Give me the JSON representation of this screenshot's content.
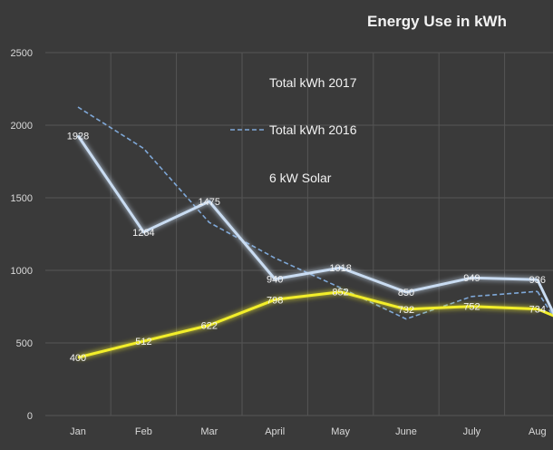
{
  "chart_data": {
    "type": "line",
    "title": "Energy Use in kWh",
    "xlabel": "",
    "ylabel": "",
    "categories": [
      "Jan",
      "Feb",
      "Mar",
      "April",
      "May",
      "June",
      "July",
      "Aug"
    ],
    "ylim": [
      0,
      2500
    ],
    "yticks": [
      0,
      500,
      1000,
      1500,
      2000,
      2500
    ],
    "grid": true,
    "legend_position": "inside-top-center",
    "series": [
      {
        "name": "Total kWh 2017",
        "values": [
          1928,
          1264,
          1475,
          940,
          1018,
          850,
          949,
          936
        ],
        "labels": [
          "1928",
          "1264",
          "1475",
          "940",
          "1018",
          "850",
          "949",
          "936"
        ],
        "color": "#c9dcf2",
        "style": "solid-glow"
      },
      {
        "name": "Total kWh 2016",
        "values": [
          2125,
          1840,
          1330,
          1085,
          880,
          665,
          820,
          855
        ],
        "labels": [],
        "color": "#7fa8d8",
        "style": "dashed"
      },
      {
        "name": "6 kW Solar",
        "values": [
          400,
          512,
          622,
          798,
          852,
          732,
          752,
          734
        ],
        "labels": [
          "400",
          "512",
          "622",
          "798",
          "852",
          "732",
          "752",
          "734"
        ],
        "color": "#f2ee2a",
        "style": "solid-glow"
      }
    ]
  }
}
